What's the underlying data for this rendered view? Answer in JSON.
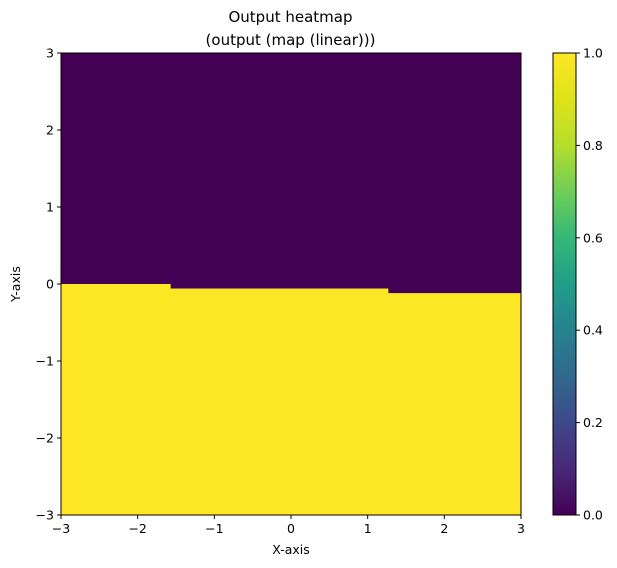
{
  "chart_data": {
    "type": "heatmap",
    "title_line1": "Output heatmap",
    "title_line2": "(output (map (linear)))",
    "xlabel": "X-axis",
    "ylabel": "Y-axis",
    "xlim": [
      -3,
      3
    ],
    "ylim": [
      -3,
      3
    ],
    "x_ticks": [
      -3,
      -2,
      -1,
      0,
      1,
      2,
      3
    ],
    "y_ticks": [
      -3,
      -2,
      -1,
      0,
      1,
      2,
      3
    ],
    "x_tick_labels": [
      "−3",
      "−2",
      "−1",
      "0",
      "1",
      "2",
      "3"
    ],
    "y_tick_labels": [
      "−3",
      "−2",
      "−1",
      "0",
      "1",
      "2",
      "3"
    ],
    "colormap": "viridis",
    "colorbar_range": [
      0,
      1
    ],
    "colorbar_ticks": [
      0,
      0.2,
      0.4,
      0.6,
      0.8,
      1.0
    ],
    "colorbar_tick_labels": [
      "0.0",
      "0.2",
      "0.4",
      "0.6",
      "0.8",
      "1.0"
    ],
    "low_color": "#440154",
    "high_color": "#fde725",
    "regions": [
      {
        "x_start": -3.0,
        "x_end": -1.57,
        "boundary_y": 0.0
      },
      {
        "x_start": -1.57,
        "x_end": 1.27,
        "boundary_y": -0.06
      },
      {
        "x_start": 1.27,
        "x_end": 3.0,
        "boundary_y": -0.12
      }
    ],
    "region_rule": "value 1.0 below boundary_y, value 0.0 above boundary_y"
  }
}
